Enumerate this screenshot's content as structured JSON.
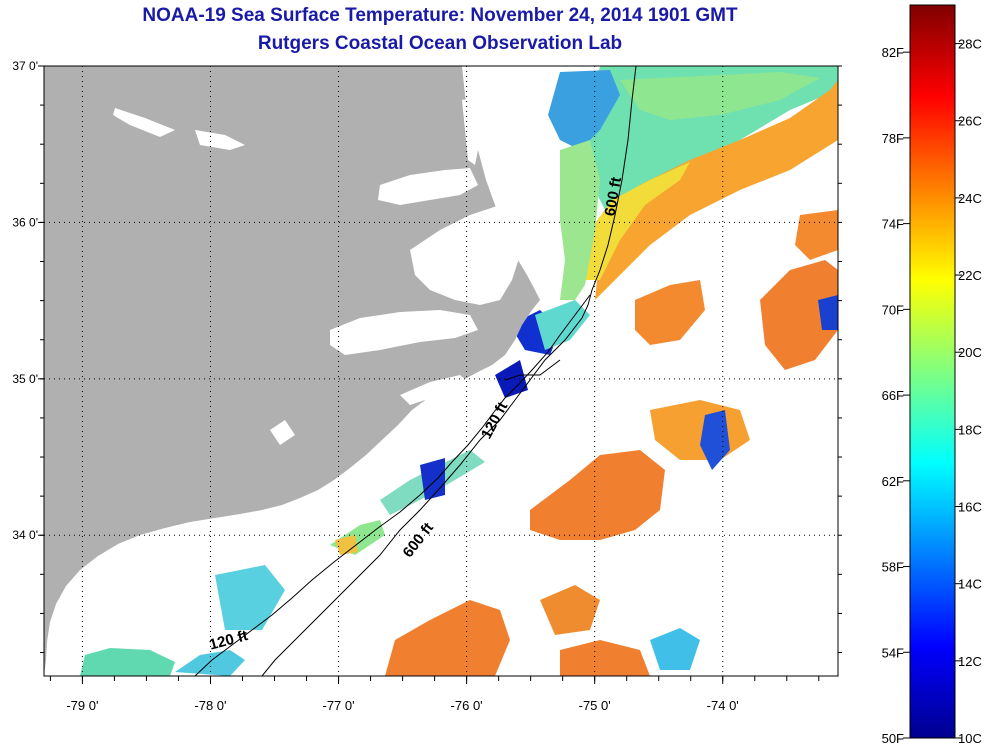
{
  "title": "NOAA-19 Sea Surface Temperature:  November 24, 2014 1901 GMT",
  "subtitle": "Rutgers Coastal Ocean Observation Lab",
  "map": {
    "lon_range": [
      -79.3,
      -73.1
    ],
    "lat_range": [
      33.1,
      37.0
    ],
    "lon_ticks": [
      -79,
      -78,
      -77,
      -76,
      -75,
      -74
    ],
    "lon_tick_labels": [
      "-79 0'",
      "-78 0'",
      "-77 0'",
      "-76 0'",
      "-75 0'",
      "-74 0'"
    ],
    "lat_ticks": [
      34,
      35,
      36,
      37
    ],
    "lat_tick_labels": [
      "34 0'",
      "35 0'",
      "36 0'",
      "37 0'"
    ],
    "grid": "dotted",
    "land_color": "#b0b0b0",
    "cloud_color": "#ffffff",
    "contour_labels": [
      {
        "text": "600 ft",
        "lon": -74.82,
        "lat": 36.16,
        "angle": -80
      },
      {
        "text": "120 ft",
        "lon": -75.75,
        "lat": 34.72,
        "angle": -62
      },
      {
        "text": "600 ft",
        "lon": -76.35,
        "lat": 33.95,
        "angle": -52
      },
      {
        "text": "120 ft",
        "lon": -77.85,
        "lat": 33.3,
        "angle": -15
      }
    ]
  },
  "colorbar": {
    "placement": "right",
    "range_c": [
      10,
      29
    ],
    "f_labels": [
      "82F",
      "78F",
      "74F",
      "70F",
      "66F",
      "62F",
      "58F",
      "54F",
      "50F"
    ],
    "c_labels": [
      "28C",
      "26C",
      "24C",
      "22C",
      "20C",
      "18C",
      "16C",
      "14C",
      "12C",
      "10C"
    ],
    "colors": [
      "#00008f",
      "#0000ff",
      "#0080ff",
      "#00ffff",
      "#80ff80",
      "#ffff00",
      "#ff8000",
      "#ff0000",
      "#800000"
    ]
  }
}
